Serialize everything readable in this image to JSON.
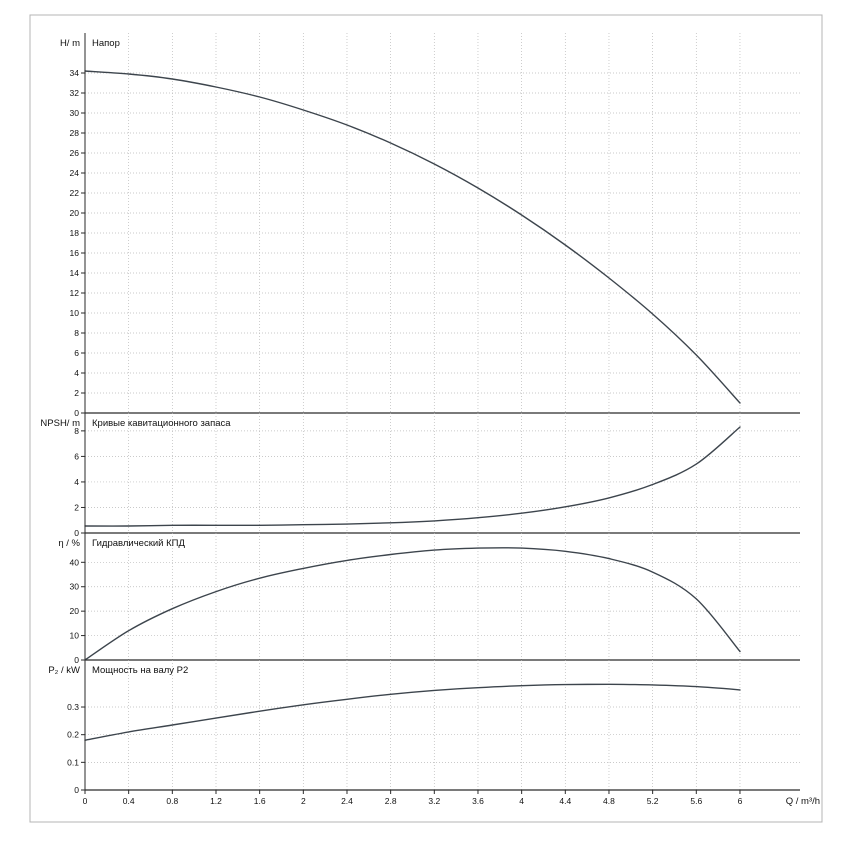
{
  "figure": {
    "xlabel": "Q / m³/h",
    "xlim": [
      0,
      6.55
    ],
    "x_tick_values": [
      0,
      0.4,
      0.8,
      1.2,
      1.6,
      2,
      2.4,
      2.8,
      3.2,
      3.6,
      4,
      4.4,
      4.8,
      5.2,
      5.6,
      6
    ],
    "x_tick_labels": [
      "0",
      "0.4",
      "0.8",
      "1.2",
      "1.6",
      "2",
      "2.4",
      "2.8",
      "3.2",
      "3.6",
      "4",
      "4.4",
      "4.8",
      "5.2",
      "5.6",
      "6"
    ],
    "colors": {
      "curve": "#3d454d",
      "grid": "#b8b8b8",
      "axis": "#2a2a2a",
      "border": "#b4b4b4",
      "text": "#111111"
    }
  },
  "chart_data": [
    {
      "id": "head",
      "type": "line",
      "title": "Напор",
      "ylabel": "H/ m",
      "ylim": [
        0,
        38
      ],
      "ytick_step": 2,
      "ytick_max": 34,
      "grid": true,
      "legend": "none",
      "x": [
        0,
        0.4,
        0.8,
        1.2,
        1.6,
        2,
        2.4,
        2.8,
        3.2,
        3.6,
        4,
        4.4,
        4.8,
        5.2,
        5.6,
        6
      ],
      "series": [
        {
          "name": "H",
          "values": [
            34.2,
            33.9,
            33.4,
            32.6,
            31.6,
            30.3,
            28.8,
            27.0,
            24.9,
            22.5,
            19.8,
            16.8,
            13.5,
            9.9,
            5.8,
            1.0
          ]
        }
      ]
    },
    {
      "id": "npsh",
      "type": "line",
      "title": "Кривые кавитационного запаса",
      "ylabel": "NPSH/ m",
      "ylim": [
        0,
        9.4
      ],
      "ytick_step": 2,
      "ytick_max": 8,
      "grid": true,
      "legend": "none",
      "x": [
        0,
        0.4,
        0.8,
        1.2,
        1.6,
        2,
        2.4,
        2.8,
        3.2,
        3.6,
        4,
        4.4,
        4.8,
        5.2,
        5.6,
        6
      ],
      "series": [
        {
          "name": "NPSH",
          "values": [
            0.55,
            0.55,
            0.6,
            0.6,
            0.6,
            0.65,
            0.7,
            0.8,
            0.95,
            1.2,
            1.55,
            2.05,
            2.75,
            3.8,
            5.4,
            8.3
          ]
        }
      ]
    },
    {
      "id": "efficiency",
      "type": "line",
      "title": "Гидравлический КПД",
      "ylabel": "η / %",
      "ylim": [
        0,
        52
      ],
      "ytick_step": 10,
      "ytick_max": 40,
      "grid": true,
      "legend": "none",
      "x": [
        0,
        0.4,
        0.8,
        1.2,
        1.6,
        2,
        2.4,
        2.8,
        3.2,
        3.6,
        4,
        4.4,
        4.8,
        5.2,
        5.6,
        6
      ],
      "series": [
        {
          "name": "eta",
          "values": [
            0,
            12,
            21,
            28,
            33.5,
            37.5,
            40.8,
            43.2,
            45,
            45.8,
            45.8,
            44.5,
            41.5,
            36,
            25,
            3.5
          ]
        }
      ]
    },
    {
      "id": "power-p2",
      "type": "line",
      "title": "Мощность на валу P2",
      "ylabel": "P₂ / kW",
      "ylim": [
        0,
        0.47
      ],
      "ytick_step": 0.1,
      "ytick_max": 0.3,
      "grid": true,
      "legend": "none",
      "x": [
        0,
        0.4,
        0.8,
        1.2,
        1.6,
        2,
        2.4,
        2.8,
        3.2,
        3.6,
        4,
        4.4,
        4.8,
        5.2,
        5.6,
        6
      ],
      "series": [
        {
          "name": "P2",
          "values": [
            0.18,
            0.21,
            0.235,
            0.26,
            0.285,
            0.308,
            0.328,
            0.346,
            0.36,
            0.37,
            0.377,
            0.381,
            0.382,
            0.38,
            0.374,
            0.362
          ]
        }
      ]
    }
  ]
}
